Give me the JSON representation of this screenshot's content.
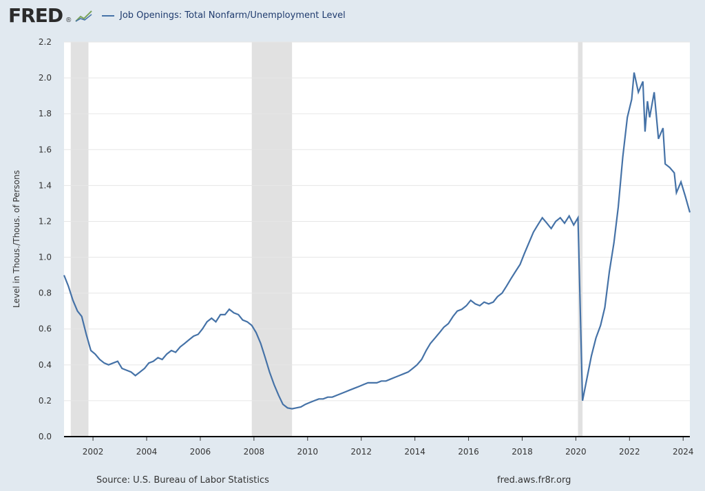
{
  "header": {
    "logo": "FRED",
    "legend_label": "Job Openings: Total Nonfarm/Unemployment Level",
    "series_color": "#4572a7"
  },
  "footer": {
    "source": "Source: U.S. Bureau of Labor Statistics",
    "site": "fred.aws.fr8r.org"
  },
  "chart_data": {
    "type": "line",
    "title": "Job Openings: Total Nonfarm/Unemployment Level",
    "ylabel": "Level in Thous./Thous. of Persons",
    "xlabel": "",
    "xlim": [
      2000.92,
      2024.25
    ],
    "ylim": [
      0,
      2.2
    ],
    "grid": true,
    "yticks": [
      "0.0",
      "0.2",
      "0.4",
      "0.6",
      "0.8",
      "1.0",
      "1.2",
      "1.4",
      "1.6",
      "1.8",
      "2.0",
      "2.2"
    ],
    "xticks": [
      "2002",
      "2004",
      "2006",
      "2008",
      "2010",
      "2012",
      "2014",
      "2016",
      "2018",
      "2020",
      "2022",
      "2024"
    ],
    "recessions": [
      [
        2001.17,
        2001.83
      ],
      [
        2007.92,
        2009.42
      ],
      [
        2020.08,
        2020.25
      ]
    ],
    "series": [
      {
        "name": "Job Openings: Total Nonfarm/Unemployment Level",
        "color": "#4572a7",
        "points": [
          [
            2000.92,
            0.9
          ],
          [
            2001.08,
            0.84
          ],
          [
            2001.25,
            0.76
          ],
          [
            2001.42,
            0.7
          ],
          [
            2001.58,
            0.67
          ],
          [
            2001.75,
            0.57
          ],
          [
            2001.92,
            0.48
          ],
          [
            2002.08,
            0.46
          ],
          [
            2002.25,
            0.43
          ],
          [
            2002.42,
            0.41
          ],
          [
            2002.58,
            0.4
          ],
          [
            2002.75,
            0.41
          ],
          [
            2002.92,
            0.42
          ],
          [
            2003.08,
            0.38
          ],
          [
            2003.25,
            0.37
          ],
          [
            2003.42,
            0.36
          ],
          [
            2003.58,
            0.34
          ],
          [
            2003.75,
            0.36
          ],
          [
            2003.92,
            0.38
          ],
          [
            2004.08,
            0.41
          ],
          [
            2004.25,
            0.42
          ],
          [
            2004.42,
            0.44
          ],
          [
            2004.58,
            0.43
          ],
          [
            2004.75,
            0.46
          ],
          [
            2004.92,
            0.48
          ],
          [
            2005.08,
            0.47
          ],
          [
            2005.25,
            0.5
          ],
          [
            2005.42,
            0.52
          ],
          [
            2005.58,
            0.54
          ],
          [
            2005.75,
            0.56
          ],
          [
            2005.92,
            0.57
          ],
          [
            2006.08,
            0.6
          ],
          [
            2006.25,
            0.64
          ],
          [
            2006.42,
            0.66
          ],
          [
            2006.58,
            0.64
          ],
          [
            2006.75,
            0.68
          ],
          [
            2006.92,
            0.68
          ],
          [
            2007.08,
            0.71
          ],
          [
            2007.25,
            0.69
          ],
          [
            2007.42,
            0.68
          ],
          [
            2007.58,
            0.65
          ],
          [
            2007.75,
            0.64
          ],
          [
            2007.92,
            0.62
          ],
          [
            2008.08,
            0.58
          ],
          [
            2008.25,
            0.52
          ],
          [
            2008.42,
            0.44
          ],
          [
            2008.58,
            0.36
          ],
          [
            2008.75,
            0.29
          ],
          [
            2008.92,
            0.23
          ],
          [
            2009.08,
            0.18
          ],
          [
            2009.25,
            0.16
          ],
          [
            2009.42,
            0.155
          ],
          [
            2009.58,
            0.16
          ],
          [
            2009.75,
            0.165
          ],
          [
            2009.92,
            0.18
          ],
          [
            2010.08,
            0.19
          ],
          [
            2010.25,
            0.2
          ],
          [
            2010.42,
            0.21
          ],
          [
            2010.58,
            0.21
          ],
          [
            2010.75,
            0.22
          ],
          [
            2010.92,
            0.22
          ],
          [
            2011.08,
            0.23
          ],
          [
            2011.25,
            0.24
          ],
          [
            2011.42,
            0.25
          ],
          [
            2011.58,
            0.26
          ],
          [
            2011.75,
            0.27
          ],
          [
            2011.92,
            0.28
          ],
          [
            2012.08,
            0.29
          ],
          [
            2012.25,
            0.3
          ],
          [
            2012.42,
            0.3
          ],
          [
            2012.58,
            0.3
          ],
          [
            2012.75,
            0.31
          ],
          [
            2012.92,
            0.31
          ],
          [
            2013.08,
            0.32
          ],
          [
            2013.25,
            0.33
          ],
          [
            2013.42,
            0.34
          ],
          [
            2013.58,
            0.35
          ],
          [
            2013.75,
            0.36
          ],
          [
            2013.92,
            0.38
          ],
          [
            2014.08,
            0.4
          ],
          [
            2014.25,
            0.43
          ],
          [
            2014.42,
            0.48
          ],
          [
            2014.58,
            0.52
          ],
          [
            2014.75,
            0.55
          ],
          [
            2014.92,
            0.58
          ],
          [
            2015.08,
            0.61
          ],
          [
            2015.25,
            0.63
          ],
          [
            2015.42,
            0.67
          ],
          [
            2015.58,
            0.7
          ],
          [
            2015.75,
            0.71
          ],
          [
            2015.92,
            0.73
          ],
          [
            2016.08,
            0.76
          ],
          [
            2016.25,
            0.74
          ],
          [
            2016.42,
            0.73
          ],
          [
            2016.58,
            0.75
          ],
          [
            2016.75,
            0.74
          ],
          [
            2016.92,
            0.75
          ],
          [
            2017.08,
            0.78
          ],
          [
            2017.25,
            0.8
          ],
          [
            2017.42,
            0.84
          ],
          [
            2017.58,
            0.88
          ],
          [
            2017.75,
            0.92
          ],
          [
            2017.92,
            0.96
          ],
          [
            2018.08,
            1.02
          ],
          [
            2018.25,
            1.08
          ],
          [
            2018.42,
            1.14
          ],
          [
            2018.58,
            1.18
          ],
          [
            2018.75,
            1.22
          ],
          [
            2018.92,
            1.19
          ],
          [
            2019.08,
            1.16
          ],
          [
            2019.25,
            1.2
          ],
          [
            2019.42,
            1.22
          ],
          [
            2019.58,
            1.19
          ],
          [
            2019.75,
            1.23
          ],
          [
            2019.92,
            1.18
          ],
          [
            2020.08,
            1.22
          ],
          [
            2020.25,
            0.2
          ],
          [
            2020.42,
            0.33
          ],
          [
            2020.58,
            0.45
          ],
          [
            2020.75,
            0.55
          ],
          [
            2020.92,
            0.62
          ],
          [
            2021.08,
            0.72
          ],
          [
            2021.25,
            0.92
          ],
          [
            2021.42,
            1.08
          ],
          [
            2021.58,
            1.28
          ],
          [
            2021.75,
            1.56
          ],
          [
            2021.92,
            1.78
          ],
          [
            2022.08,
            1.88
          ],
          [
            2022.17,
            2.03
          ],
          [
            2022.33,
            1.92
          ],
          [
            2022.5,
            1.98
          ],
          [
            2022.58,
            1.7
          ],
          [
            2022.67,
            1.87
          ],
          [
            2022.75,
            1.78
          ],
          [
            2022.92,
            1.92
          ],
          [
            2023.08,
            1.66
          ],
          [
            2023.25,
            1.72
          ],
          [
            2023.33,
            1.52
          ],
          [
            2023.5,
            1.5
          ],
          [
            2023.67,
            1.47
          ],
          [
            2023.75,
            1.36
          ],
          [
            2023.92,
            1.42
          ],
          [
            2024.08,
            1.34
          ],
          [
            2024.25,
            1.25
          ]
        ]
      }
    ]
  }
}
